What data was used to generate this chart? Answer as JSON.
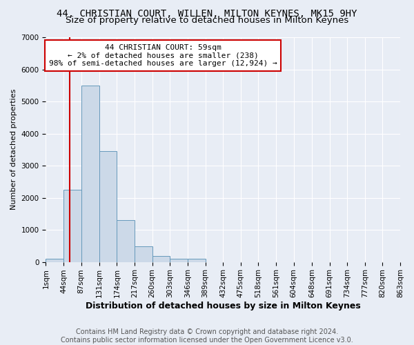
{
  "title": "44, CHRISTIAN COURT, WILLEN, MILTON KEYNES, MK15 9HY",
  "subtitle": "Size of property relative to detached houses in Milton Keynes",
  "xlabel": "Distribution of detached houses by size in Milton Keynes",
  "ylabel": "Number of detached properties",
  "bar_values": [
    100,
    2250,
    5500,
    3450,
    1300,
    480,
    180,
    90,
    90,
    0,
    0,
    0,
    0,
    0,
    0,
    0,
    0,
    0,
    0,
    0
  ],
  "bin_edges": [
    1,
    44,
    87,
    131,
    174,
    217,
    260,
    303,
    346,
    389,
    432,
    475,
    518,
    561,
    604,
    648,
    691,
    734,
    777,
    820,
    863
  ],
  "tick_labels": [
    "1sqm",
    "44sqm",
    "87sqm",
    "131sqm",
    "174sqm",
    "217sqm",
    "260sqm",
    "303sqm",
    "346sqm",
    "389sqm",
    "432sqm",
    "475sqm",
    "518sqm",
    "561sqm",
    "604sqm",
    "648sqm",
    "691sqm",
    "734sqm",
    "777sqm",
    "820sqm",
    "863sqm"
  ],
  "bar_color": "#ccd9e8",
  "bar_edge_color": "#6699bb",
  "property_size": 59,
  "red_line_color": "#cc0000",
  "annotation_line1": "44 CHRISTIAN COURT: 59sqm",
  "annotation_line2": "← 2% of detached houses are smaller (238)",
  "annotation_line3": "98% of semi-detached houses are larger (12,924) →",
  "annotation_box_color": "#ffffff",
  "annotation_box_edge_color": "#cc0000",
  "ylim": [
    0,
    7000
  ],
  "yticks": [
    0,
    1000,
    2000,
    3000,
    4000,
    5000,
    6000,
    7000
  ],
  "bg_color": "#e8edf5",
  "grid_color": "#ffffff",
  "title_fontsize": 10,
  "subtitle_fontsize": 9.5,
  "xlabel_fontsize": 9,
  "ylabel_fontsize": 8,
  "tick_fontsize": 7.5,
  "footer_text": "Contains HM Land Registry data © Crown copyright and database right 2024.\nContains public sector information licensed under the Open Government Licence v3.0.",
  "footer_fontsize": 7
}
